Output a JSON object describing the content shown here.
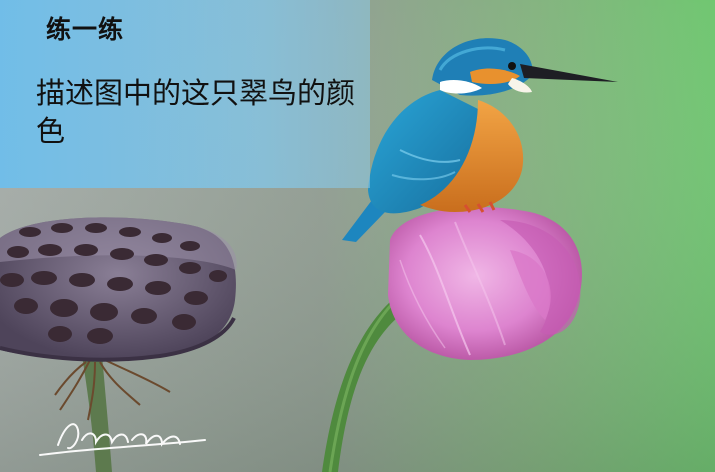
{
  "slide": {
    "heading": "练一练",
    "prompt": "描述图中的这只翠鸟的颜色"
  },
  "photo": {
    "subject": "kingfisher",
    "colors": {
      "bird_back": "#1f8fc8",
      "bird_belly": "#e8912e",
      "flower": "#e38ad2",
      "lotus_pod": "#6a5b75",
      "background_left": "#9aa6a0",
      "background_right": "#6fc06a"
    }
  },
  "signature": "Huang yang"
}
